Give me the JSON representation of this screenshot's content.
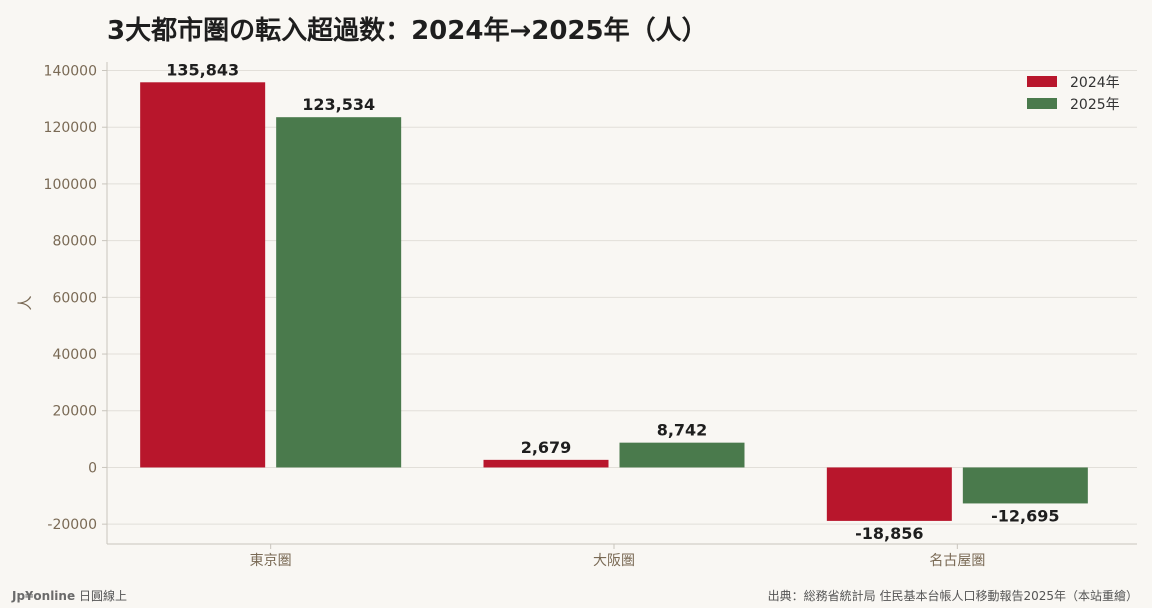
{
  "title": "3大都市圏の転入超過数：2024年→2025年（人）",
  "footer": {
    "brand": "Jp¥online",
    "brand_suffix": "日圓線上",
    "source": "出典：総務省統計局 住民基本台帳人口移動報告2025年（本站重繪）"
  },
  "colors": {
    "series_2024": "#b8162c",
    "series_2025": "#4a7a4c",
    "grid": "#e2dfd9",
    "axis": "#c9c5bd",
    "tick_text": "#7a6a55"
  },
  "chart_data": {
    "type": "bar",
    "categories": [
      "東京圏",
      "大阪圏",
      "名古屋圏"
    ],
    "series": [
      {
        "name": "2024年",
        "values": [
          135843,
          2679,
          -18856
        ],
        "labels": [
          "135,843",
          "2,679",
          "-18,856"
        ]
      },
      {
        "name": "2025年",
        "values": [
          123534,
          8742,
          -12695
        ],
        "labels": [
          "123,534",
          "8,742",
          "-12,695"
        ]
      }
    ],
    "ylabel": "人",
    "ylim": [
      -27000,
      143000
    ],
    "yticks": [
      -20000,
      0,
      20000,
      40000,
      60000,
      80000,
      100000,
      120000,
      140000
    ],
    "ytick_labels": [
      "-20000",
      "0",
      "20000",
      "40000",
      "60000",
      "80000",
      "100000",
      "120000",
      "140000"
    ],
    "grid": true,
    "legend_position": "top-right"
  }
}
